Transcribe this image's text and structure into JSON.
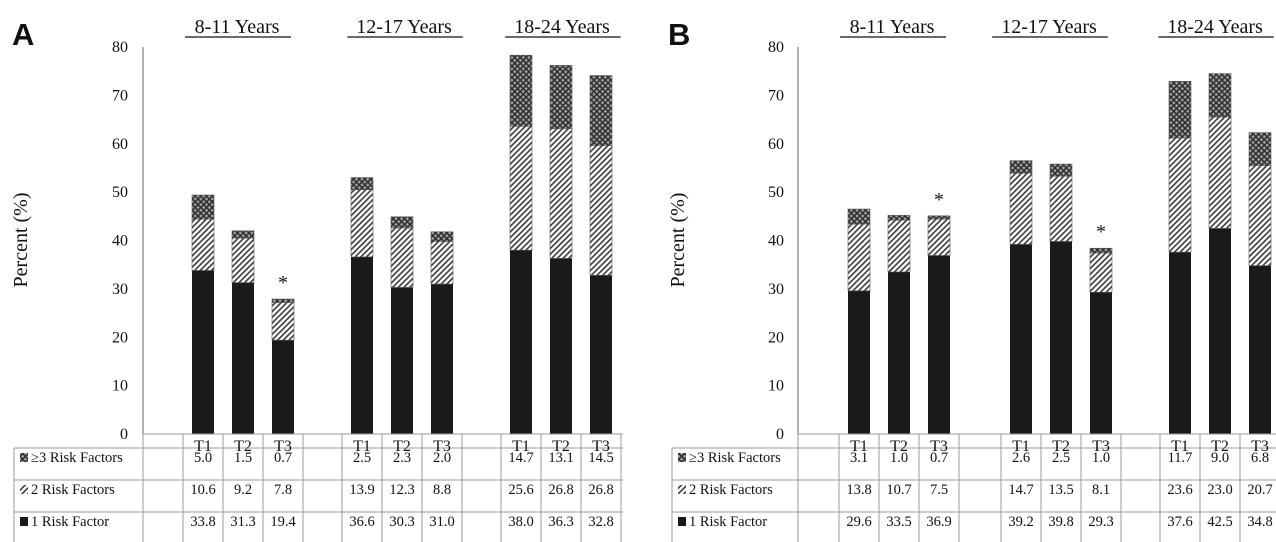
{
  "chart_data": [
    {
      "type": "bar",
      "panel": "A",
      "stacked": true,
      "ylabel": "Percent (%)",
      "ylim": [
        0,
        80
      ],
      "yticks": [
        0,
        10,
        20,
        30,
        40,
        50,
        60,
        70,
        80
      ],
      "groups": [
        {
          "label": "8-11 Years",
          "categories": [
            "T1",
            "T2",
            "T3"
          ],
          "significant": [
            false,
            false,
            true
          ]
        },
        {
          "label": "12-17 Years",
          "categories": [
            "T1",
            "T2",
            "T3"
          ],
          "significant": [
            false,
            false,
            false
          ]
        },
        {
          "label": "18-24 Years",
          "categories": [
            "T1",
            "T2",
            "T3"
          ],
          "significant": [
            false,
            false,
            false
          ]
        }
      ],
      "significance_marker": "*",
      "series": [
        {
          "name": "≥3 Risk Factors",
          "pattern": "crosshatch",
          "values": [
            5.0,
            1.5,
            0.7,
            2.5,
            2.3,
            2.0,
            14.7,
            13.1,
            14.5
          ]
        },
        {
          "name": "2 Risk Factors",
          "pattern": "diagonal",
          "values": [
            10.6,
            9.2,
            7.8,
            13.9,
            12.3,
            8.8,
            25.6,
            26.8,
            26.8
          ]
        },
        {
          "name": "1 Risk Factor",
          "pattern": "solid",
          "values": [
            33.8,
            31.3,
            19.4,
            36.6,
            30.3,
            31.0,
            38.0,
            36.3,
            32.8
          ]
        }
      ],
      "table_values": [
        [
          "5.0",
          "1.5",
          "0.7",
          "2.5",
          "2.3",
          "2.0",
          "14.7",
          "13.1",
          "14.5"
        ],
        [
          "10.6",
          "9.2",
          "7.8",
          "13.9",
          "12.3",
          "8.8",
          "25.6",
          "26.8",
          "26.8"
        ],
        [
          "33.8",
          "31.3",
          "19.4",
          "36.6",
          "30.3",
          "31.0",
          "38.0",
          "36.3",
          "32.8"
        ]
      ]
    },
    {
      "type": "bar",
      "panel": "B",
      "stacked": true,
      "ylabel": "Percent (%)",
      "ylim": [
        0,
        80
      ],
      "yticks": [
        0,
        10,
        20,
        30,
        40,
        50,
        60,
        70,
        80
      ],
      "groups": [
        {
          "label": "8-11 Years",
          "categories": [
            "T1",
            "T2",
            "T3"
          ],
          "significant": [
            false,
            false,
            true
          ]
        },
        {
          "label": "12-17 Years",
          "categories": [
            "T1",
            "T2",
            "T3"
          ],
          "significant": [
            false,
            false,
            true
          ]
        },
        {
          "label": "18-24 Years",
          "categories": [
            "T1",
            "T2",
            "T3"
          ],
          "significant": [
            false,
            false,
            false
          ]
        }
      ],
      "significance_marker": "*",
      "series": [
        {
          "name": "≥3 Risk Factors",
          "pattern": "crosshatch",
          "values": [
            3.1,
            1.0,
            0.7,
            2.6,
            2.5,
            1.0,
            11.7,
            9.0,
            6.8
          ]
        },
        {
          "name": "2 Risk Factors",
          "pattern": "diagonal",
          "values": [
            13.8,
            10.7,
            7.5,
            14.7,
            13.5,
            8.1,
            23.6,
            23.0,
            20.7
          ]
        },
        {
          "name": "1 Risk Factor",
          "pattern": "solid",
          "values": [
            29.6,
            33.5,
            36.9,
            39.2,
            39.8,
            29.3,
            37.6,
            42.5,
            34.8
          ]
        }
      ],
      "table_values": [
        [
          "3.1",
          "1.0",
          "0.7",
          "2.6",
          "2.5",
          "1.0",
          "11.7",
          "9.0",
          "6.8"
        ],
        [
          "13.8",
          "10.7",
          "7.5",
          "14.7",
          "13.5",
          "8.1",
          "23.6",
          "23.0",
          "20.7"
        ],
        [
          "29.6",
          "33.5",
          "36.9",
          "39.2",
          "39.8",
          "29.3",
          "37.6",
          "42.5",
          "34.8"
        ]
      ]
    }
  ],
  "colors": {
    "solid": "#1a1a1a",
    "hatch": "#333333",
    "grid": "#9a9a9a"
  }
}
